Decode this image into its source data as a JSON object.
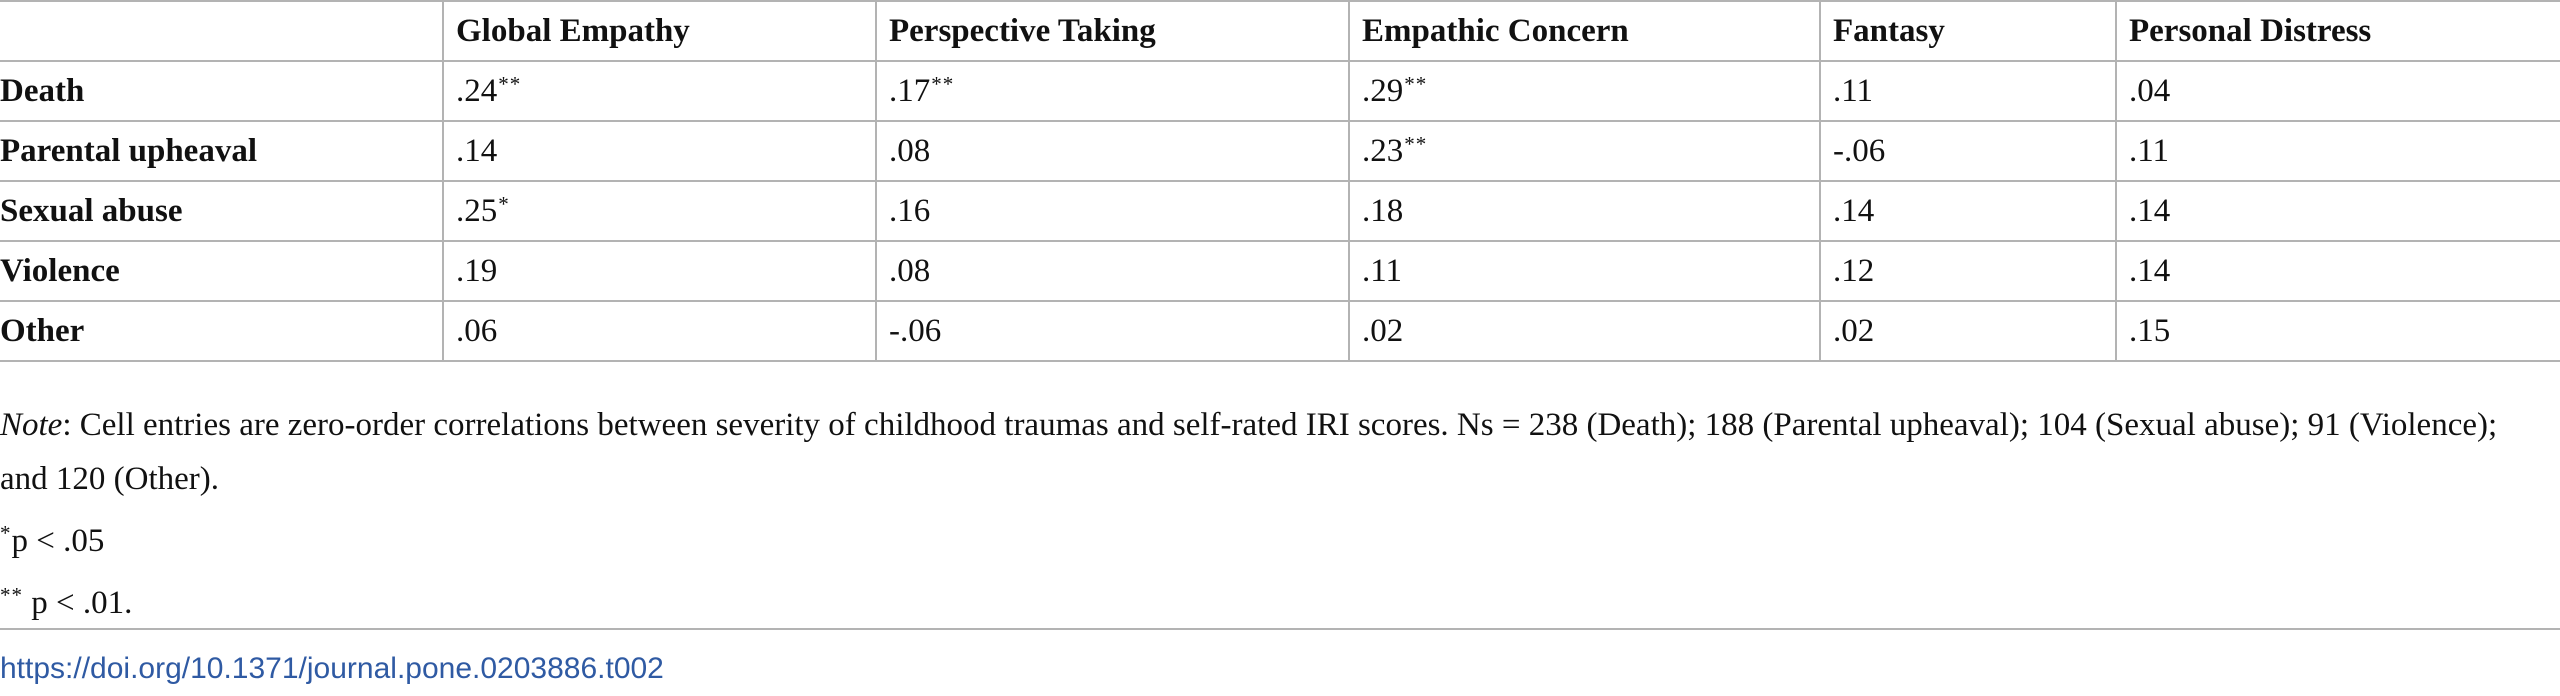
{
  "table": {
    "headers": [
      "",
      "Global Empathy",
      "Perspective Taking",
      "Empathic Concern",
      "Fantasy",
      "Personal Distress"
    ],
    "rows": [
      {
        "label": "Death",
        "cells": [
          {
            "value": ".24",
            "sig": "**"
          },
          {
            "value": ".17",
            "sig": "**"
          },
          {
            "value": ".29",
            "sig": "**"
          },
          {
            "value": ".11",
            "sig": ""
          },
          {
            "value": ".04",
            "sig": ""
          }
        ]
      },
      {
        "label": "Parental upheaval",
        "cells": [
          {
            "value": ".14",
            "sig": ""
          },
          {
            "value": ".08",
            "sig": ""
          },
          {
            "value": ".23",
            "sig": "**"
          },
          {
            "value": "-.06",
            "sig": ""
          },
          {
            "value": ".11",
            "sig": ""
          }
        ]
      },
      {
        "label": "Sexual abuse",
        "cells": [
          {
            "value": ".25",
            "sig": "*"
          },
          {
            "value": ".16",
            "sig": ""
          },
          {
            "value": ".18",
            "sig": ""
          },
          {
            "value": ".14",
            "sig": ""
          },
          {
            "value": ".14",
            "sig": ""
          }
        ]
      },
      {
        "label": "Violence",
        "cells": [
          {
            "value": ".19",
            "sig": ""
          },
          {
            "value": ".08",
            "sig": ""
          },
          {
            "value": ".11",
            "sig": ""
          },
          {
            "value": ".12",
            "sig": ""
          },
          {
            "value": ".14",
            "sig": ""
          }
        ]
      },
      {
        "label": "Other",
        "cells": [
          {
            "value": ".06",
            "sig": ""
          },
          {
            "value": "-.06",
            "sig": ""
          },
          {
            "value": ".02",
            "sig": ""
          },
          {
            "value": ".02",
            "sig": ""
          },
          {
            "value": ".15",
            "sig": ""
          }
        ]
      }
    ]
  },
  "notes": {
    "note_label": "Note",
    "note_text": ": Cell entries are zero-order correlations between severity of childhood traumas and self-rated IRI scores. Ns = 238 (Death); 188 (Parental upheaval); 104 (Sexual abuse); 91 (Violence); and 120 (Other).",
    "footnote1_mark": "*",
    "footnote1_text": "p < .05",
    "footnote2_mark": "**",
    "footnote2_text": " p < .01."
  },
  "doi": "https://doi.org/10.1371/journal.pone.0203886.t002",
  "colors": {
    "rule": "#b3b3b3",
    "link": "#2f5aa3"
  }
}
